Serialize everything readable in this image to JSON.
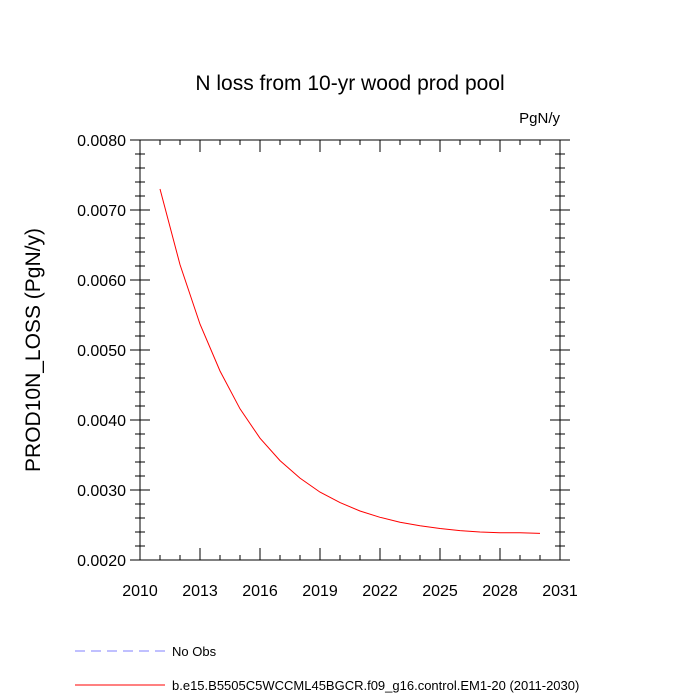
{
  "chart_data": {
    "type": "line",
    "title": "N loss from 10-yr wood prod pool",
    "units_label": "PgN/y",
    "xlabel": "",
    "ylabel": "PROD10N_LOSS  (PgN/y)",
    "xlim": [
      2010,
      2031
    ],
    "ylim": [
      0.002,
      0.008
    ],
    "x_ticks": [
      2010,
      2013,
      2016,
      2019,
      2022,
      2025,
      2028,
      2031
    ],
    "x_tick_labels": [
      "2010",
      "2013",
      "2016",
      "2019",
      "2022",
      "2025",
      "2028",
      "2031"
    ],
    "y_ticks": [
      0.002,
      0.003,
      0.004,
      0.005,
      0.006,
      0.007,
      0.008
    ],
    "y_tick_labels": [
      "0.0020",
      "0.0030",
      "0.0040",
      "0.0050",
      "0.0060",
      "0.0070",
      "0.0080"
    ],
    "grid": false,
    "series": [
      {
        "name": "b.e15.B5505C5WCCML45BGCR.f09_g16.control.EM1-20 (2011-2030)",
        "color": "#ff0000",
        "style": "solid",
        "x": [
          2011,
          2012,
          2013,
          2014,
          2015,
          2016,
          2017,
          2018,
          2019,
          2020,
          2021,
          2022,
          2023,
          2024,
          2025,
          2026,
          2027,
          2028,
          2029,
          2030
        ],
        "values": [
          0.0073,
          0.00622,
          0.00537,
          0.0047,
          0.00416,
          0.00374,
          0.00342,
          0.00317,
          0.00297,
          0.00282,
          0.0027,
          0.00261,
          0.00254,
          0.00249,
          0.00245,
          0.00242,
          0.0024,
          0.00239,
          0.00239,
          0.00238
        ]
      }
    ],
    "legend": [
      {
        "label": "No Obs",
        "color": "#8080ff",
        "style": "dashed"
      },
      {
        "label": "b.e15.B5505C5WCCML45BGCR.f09_g16.control.EM1-20 (2011-2030)",
        "color": "#ff0000",
        "style": "solid"
      }
    ],
    "legend_position": "bottom-left"
  }
}
